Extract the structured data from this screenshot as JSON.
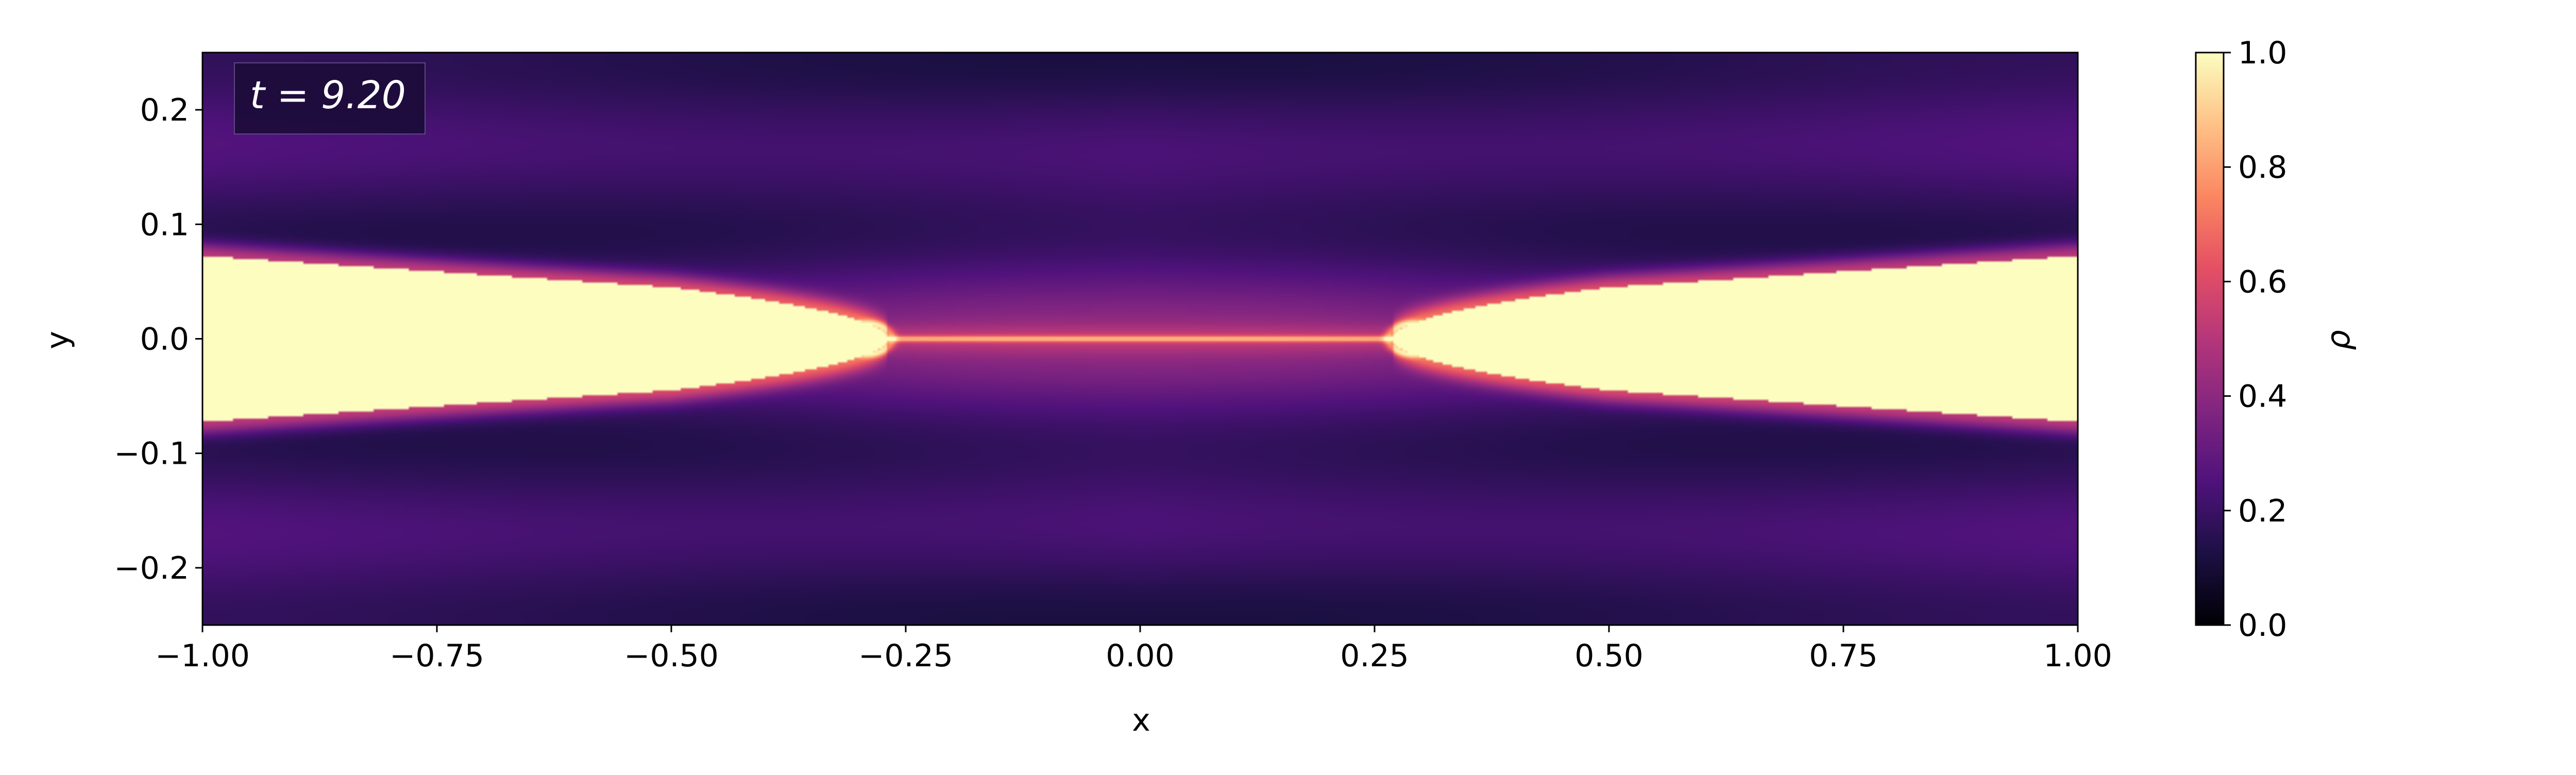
{
  "chart_data": {
    "type": "heatmap",
    "title": "",
    "annotation": "t = 9.20",
    "xlabel": "x",
    "ylabel": "y",
    "colorbar_label": "ρ",
    "xlim": [
      -1.0,
      1.0
    ],
    "ylim": [
      -0.25,
      0.25
    ],
    "clim": [
      0.0,
      1.0
    ],
    "x_ticks": [
      -1.0,
      -0.75,
      -0.5,
      -0.25,
      0.0,
      0.25,
      0.5,
      0.75,
      1.0
    ],
    "x_tick_labels": [
      "−1.00",
      "−0.75",
      "−0.50",
      "−0.25",
      "0.00",
      "0.25",
      "0.50",
      "0.75",
      "1.00"
    ],
    "y_ticks": [
      0.2,
      0.1,
      0.0,
      -0.1,
      -0.2
    ],
    "y_tick_labels": [
      "0.2",
      "0.1",
      "0.0",
      "−0.1",
      "−0.2"
    ],
    "colorbar_ticks": [
      1.0,
      0.8,
      0.6,
      0.4,
      0.2,
      0.0
    ],
    "colorbar_tick_labels": [
      "1.0",
      "0.8",
      "0.6",
      "0.4",
      "0.2",
      "0.0"
    ],
    "colormap": "magma",
    "colormap_stops": [
      "#000004",
      "#1c1044",
      "#4f127b",
      "#812581",
      "#b5367a",
      "#e55064",
      "#fb8761",
      "#fec287",
      "#fcfdbf"
    ],
    "field_description": "dense jets (rho≈1) from both x-boundaries converging toward x=0 along y=0, with background rho≈0.2–0.35",
    "grid": false
  }
}
